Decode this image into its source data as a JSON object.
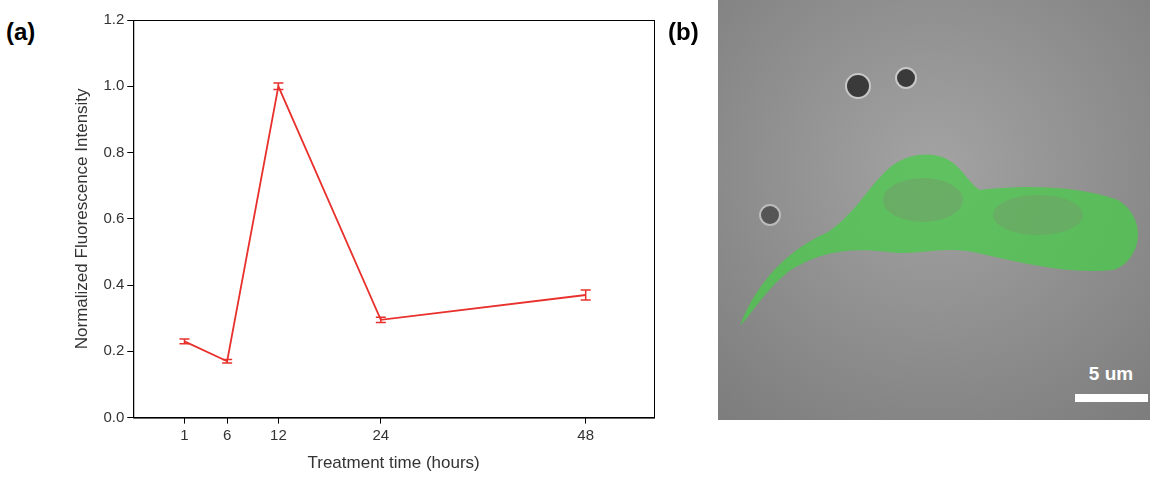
{
  "chart_data": {
    "type": "line",
    "panel_label": "(a)",
    "x_label": "Treatment time (hours)",
    "y_label": "Normalized Fluorescence Intensity",
    "x": [
      1,
      6,
      12,
      24,
      48
    ],
    "values": [
      0.23,
      0.17,
      1.0,
      0.295,
      0.37
    ],
    "errors": [
      0.007,
      0.005,
      0.01,
      0.008,
      0.015
    ],
    "color": "#e8302c",
    "line_style": "solid",
    "grid": false,
    "xlim": [
      -5,
      56
    ],
    "xticks": [
      1,
      6,
      12,
      24,
      48
    ],
    "ylim": [
      0,
      1.2
    ],
    "yticks": [
      {
        "value": 0,
        "label": "0.0"
      },
      0.2,
      0.4,
      0.6,
      0.8,
      {
        "value": 1,
        "label": "1.0"
      },
      1.2
    ]
  },
  "micrograph": {
    "panel_label": "(b)",
    "scale_bar": "5 um"
  }
}
